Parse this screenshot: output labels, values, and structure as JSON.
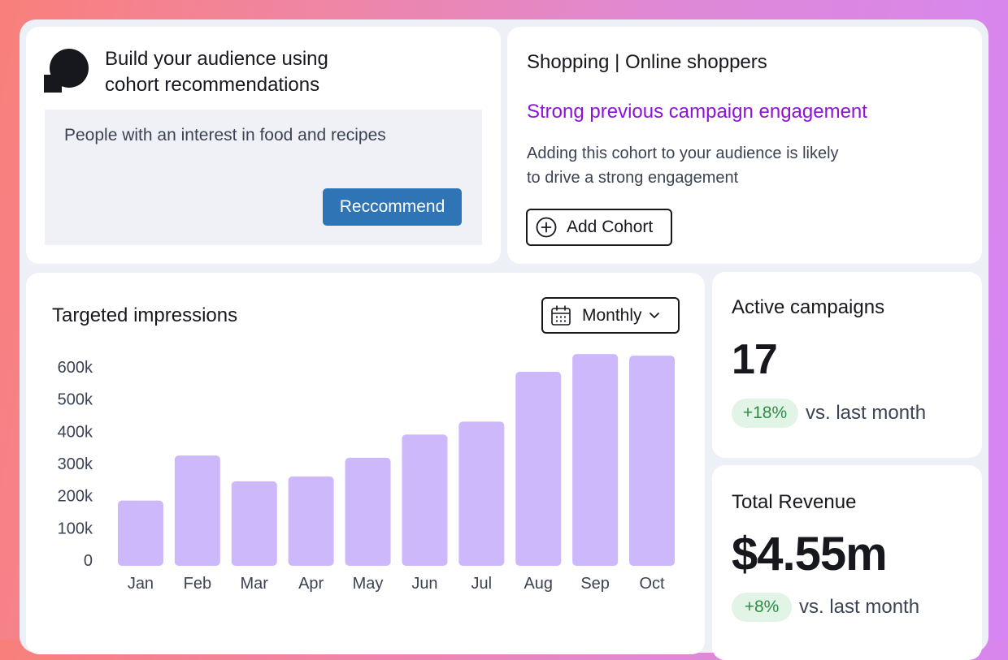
{
  "build_card": {
    "title_line1": "Build your audience using",
    "title_line2": "cohort recommendations",
    "prompt_text": "People with an interest in food and recipes",
    "recommend_label": "Reccommend"
  },
  "cohort_card": {
    "title": "Shopping | Online shoppers",
    "headline": "Strong previous campaign engagement",
    "description_line1": "Adding this cohort to your audience is likely",
    "description_line2": "to drive a strong engagement",
    "add_label": "Add Cohort",
    "headline_color": "#8e12d9"
  },
  "chart_card": {
    "title": "Targeted impressions",
    "period_label": "Monthly"
  },
  "chart_data": {
    "type": "bar",
    "title": "Targeted impressions",
    "categories": [
      "Jan",
      "Feb",
      "Mar",
      "Apr",
      "May",
      "Jun",
      "Jul",
      "Aug",
      "Sep",
      "Oct"
    ],
    "values": [
      185000,
      325000,
      245000,
      260000,
      318000,
      390000,
      430000,
      585000,
      640000,
      635000
    ],
    "ylim": [
      0,
      600000
    ],
    "yticks": [
      0,
      100000,
      200000,
      300000,
      400000,
      500000,
      600000
    ],
    "ytick_labels": [
      "0",
      "100k",
      "200k",
      "300k",
      "400k",
      "500k",
      "600k"
    ],
    "xlabel": "",
    "ylabel": "",
    "grid": false,
    "bar_color": "#cdb8fc"
  },
  "active_card": {
    "label": "Active campaigns",
    "value": "17",
    "change": "+18%",
    "comparison": "vs. last month"
  },
  "revenue_card": {
    "label": "Total Revenue",
    "value": "$4.55m",
    "change": "+8%",
    "comparison": "vs. last month"
  },
  "colors": {
    "primary_button": "#2f74b5",
    "positive_badge_bg": "#e2f4e6",
    "positive_badge_text": "#2e8b48"
  }
}
